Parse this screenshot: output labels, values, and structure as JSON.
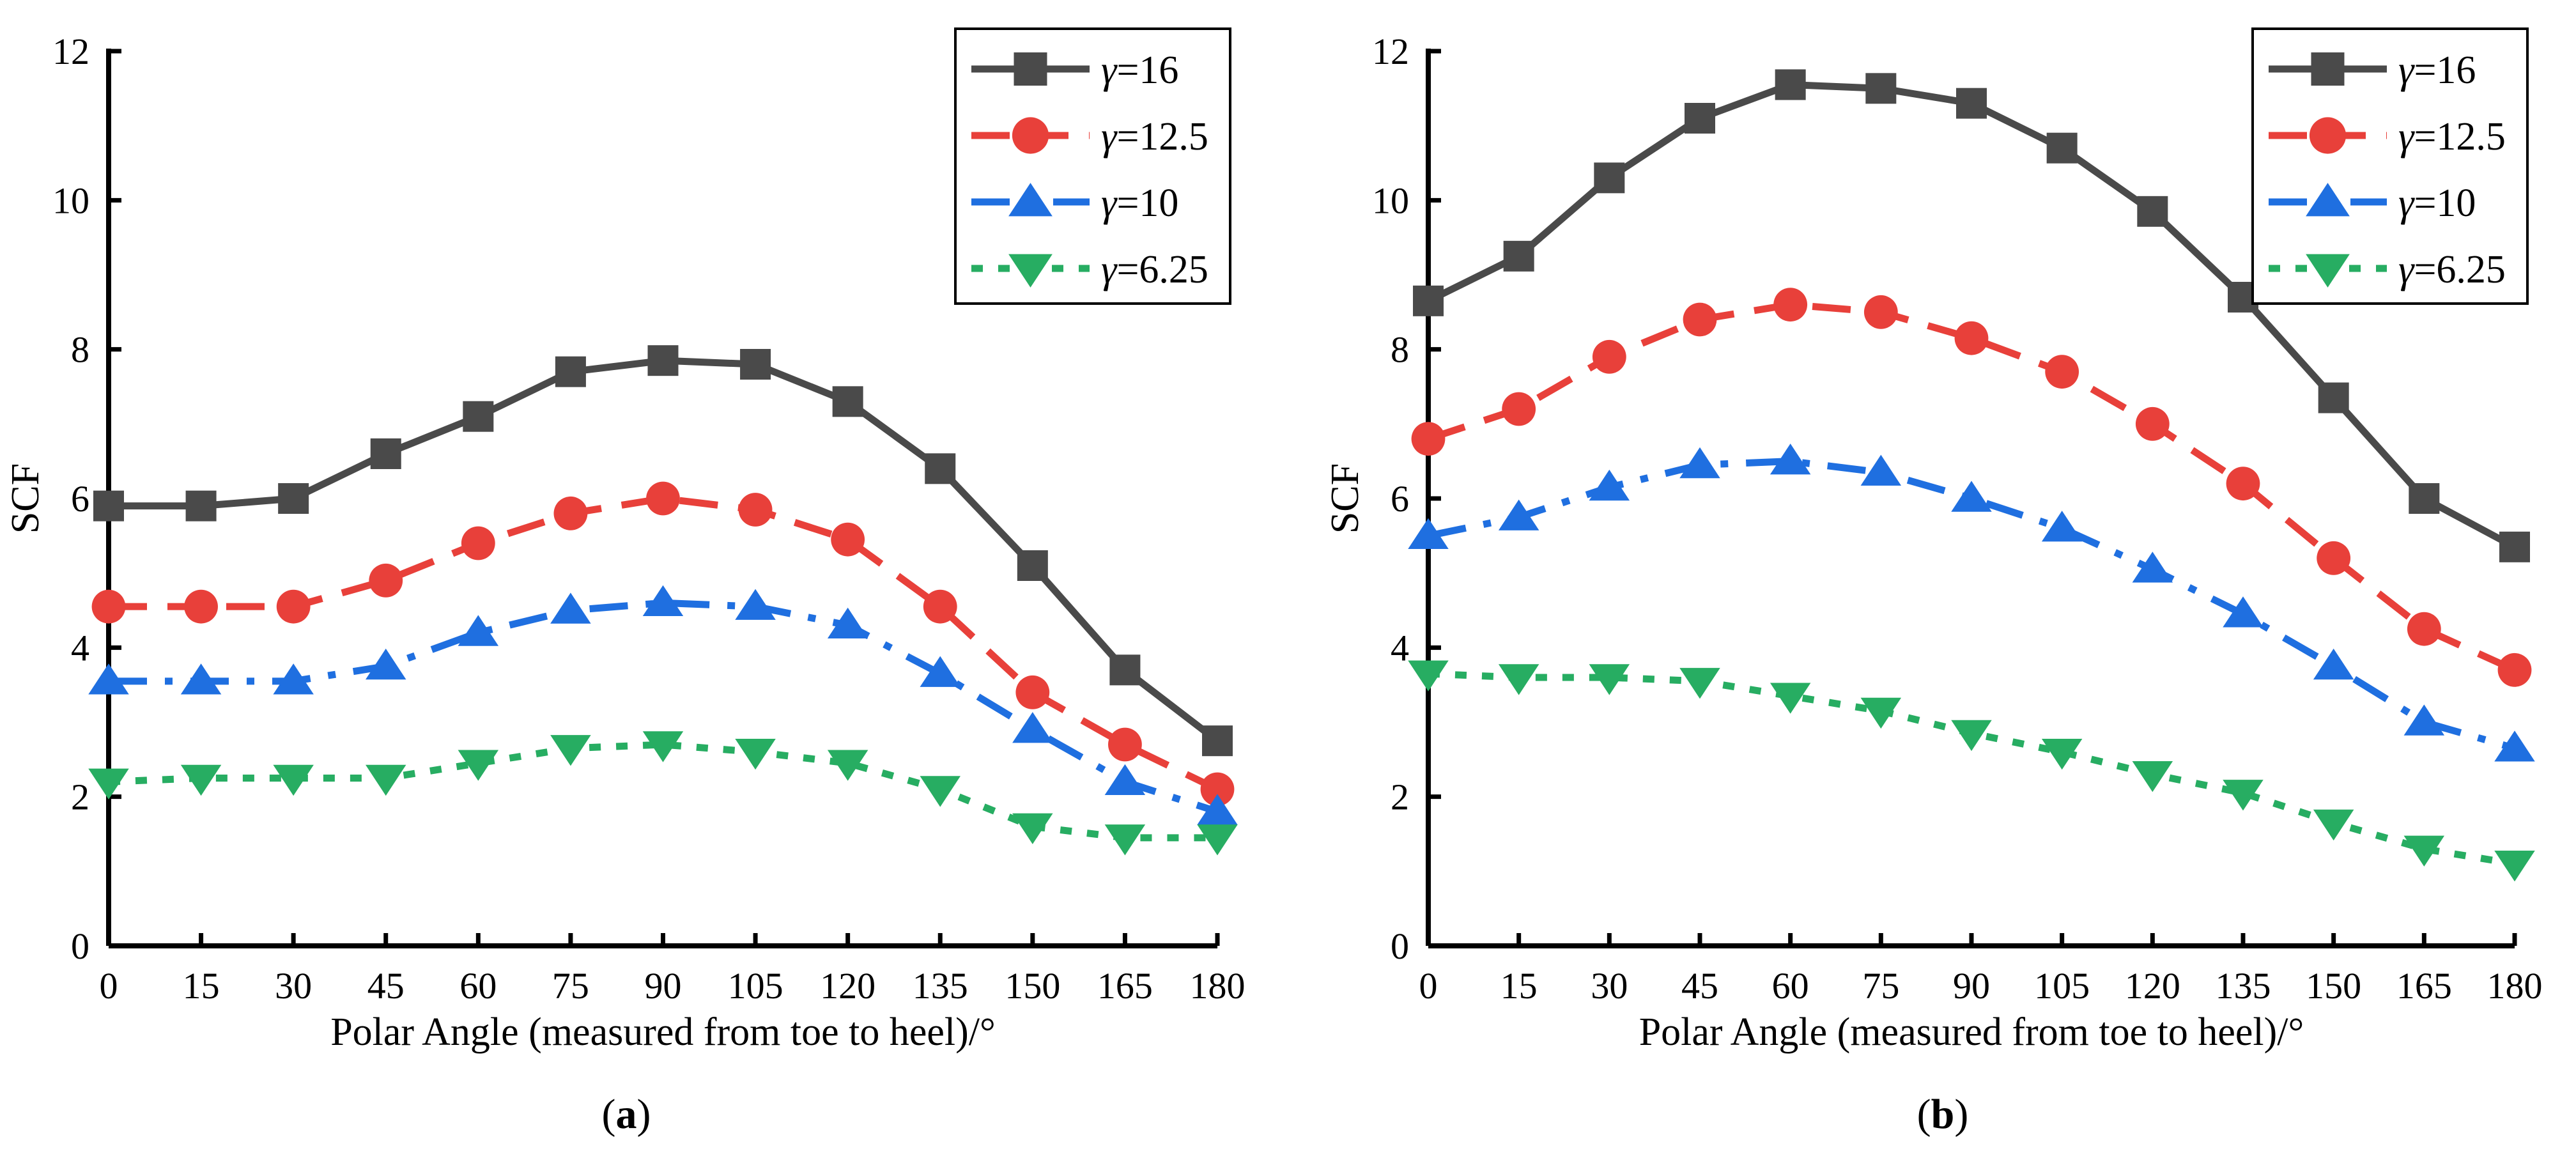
{
  "chart_data": [
    {
      "type": "line",
      "panel": "(a)",
      "panel_letter": "a",
      "xlabel": "Polar Angle (measured from toe to heel)/°",
      "ylabel": "SCF",
      "x": [
        0,
        15,
        30,
        45,
        60,
        75,
        90,
        105,
        120,
        135,
        150,
        165,
        180
      ],
      "xticks": [
        0,
        15,
        30,
        45,
        60,
        75,
        90,
        105,
        120,
        135,
        150,
        165,
        180
      ],
      "yticks": [
        0,
        2,
        4,
        6,
        8,
        10,
        12
      ],
      "xlim": [
        0,
        180
      ],
      "ylim": [
        0,
        12
      ],
      "grid": false,
      "legend": "top-right",
      "series": [
        {
          "name": "γ=16",
          "gamma": "16",
          "marker": "square",
          "dash": "solid",
          "color": "#4a4a4a",
          "values": [
            5.9,
            5.9,
            6.0,
            6.6,
            7.1,
            7.7,
            7.85,
            7.8,
            7.3,
            6.4,
            5.1,
            3.7,
            2.75
          ]
        },
        {
          "name": "γ=12.5",
          "gamma": "12.5",
          "marker": "circle",
          "dash": "dash",
          "color": "#e8403a",
          "values": [
            4.55,
            4.55,
            4.55,
            4.9,
            5.4,
            5.8,
            6.0,
            5.85,
            5.45,
            4.55,
            3.4,
            2.7,
            2.1
          ]
        },
        {
          "name": "γ=10",
          "gamma": "10",
          "marker": "triangle-up",
          "dash": "dashdot",
          "color": "#1f6fe0",
          "values": [
            3.55,
            3.55,
            3.55,
            3.75,
            4.2,
            4.5,
            4.6,
            4.55,
            4.3,
            3.65,
            2.9,
            2.2,
            1.8
          ]
        },
        {
          "name": "γ=6.25",
          "gamma": "6.25",
          "marker": "triangle-down",
          "dash": "dot",
          "color": "#27ad62",
          "values": [
            2.2,
            2.25,
            2.25,
            2.25,
            2.45,
            2.65,
            2.7,
            2.6,
            2.45,
            2.1,
            1.6,
            1.45,
            1.45
          ]
        }
      ]
    },
    {
      "type": "line",
      "panel": "(b)",
      "panel_letter": "b",
      "xlabel": "Polar Angle (measured from toe to heel)/°",
      "ylabel": "SCF",
      "x": [
        0,
        15,
        30,
        45,
        60,
        75,
        90,
        105,
        120,
        135,
        150,
        165,
        180
      ],
      "xticks": [
        0,
        15,
        30,
        45,
        60,
        75,
        90,
        105,
        120,
        135,
        150,
        165,
        180
      ],
      "yticks": [
        0,
        2,
        4,
        6,
        8,
        10,
        12
      ],
      "xlim": [
        0,
        180
      ],
      "ylim": [
        0,
        12
      ],
      "grid": false,
      "legend": "top-right",
      "series": [
        {
          "name": "γ=16",
          "gamma": "16",
          "marker": "square",
          "dash": "solid",
          "color": "#4a4a4a",
          "values": [
            8.65,
            9.25,
            10.3,
            11.1,
            11.55,
            11.5,
            11.3,
            10.7,
            9.85,
            8.7,
            7.35,
            6.0,
            5.35
          ]
        },
        {
          "name": "γ=12.5",
          "gamma": "12.5",
          "marker": "circle",
          "dash": "dash",
          "color": "#e8403a",
          "values": [
            6.8,
            7.2,
            7.9,
            8.4,
            8.6,
            8.5,
            8.15,
            7.7,
            7.0,
            6.2,
            5.2,
            4.25,
            3.7
          ]
        },
        {
          "name": "γ=10",
          "gamma": "10",
          "marker": "triangle-up",
          "dash": "dashdot",
          "color": "#1f6fe0",
          "values": [
            5.5,
            5.75,
            6.15,
            6.45,
            6.5,
            6.35,
            6.0,
            5.6,
            5.05,
            4.45,
            3.75,
            3.0,
            2.65
          ]
        },
        {
          "name": "γ=6.25",
          "gamma": "6.25",
          "marker": "triangle-down",
          "dash": "dot",
          "color": "#27ad62",
          "values": [
            3.65,
            3.6,
            3.6,
            3.55,
            3.35,
            3.15,
            2.85,
            2.6,
            2.3,
            2.05,
            1.65,
            1.3,
            1.1
          ]
        }
      ]
    }
  ]
}
